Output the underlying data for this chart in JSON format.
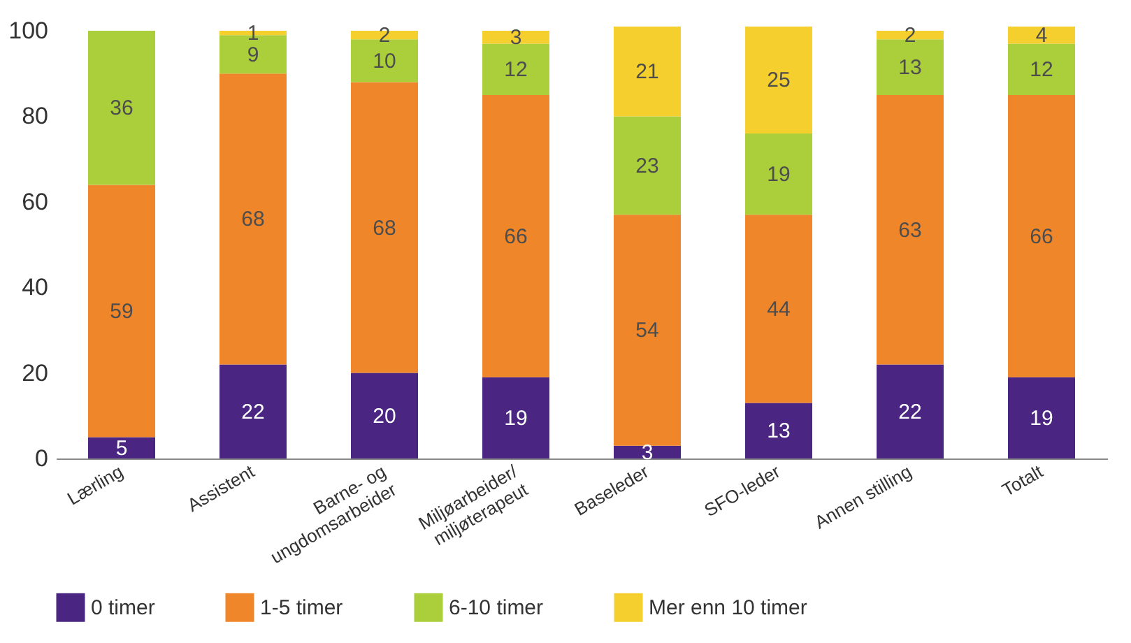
{
  "chart_data": {
    "type": "bar",
    "stacked": true,
    "categories": [
      "Lærling",
      "Assistent",
      "Barne- og\nungdomsarbeider",
      "Miljøarbeider/\nmiljøterapeut",
      "Baseleder",
      "SFO-leder",
      "Annen stilling",
      "Totalt"
    ],
    "series": [
      {
        "name": "0 timer",
        "color": "#4b2582",
        "values": [
          5,
          22,
          20,
          19,
          3,
          13,
          22,
          19
        ]
      },
      {
        "name": "1-5 timer",
        "color": "#f0862a",
        "values": [
          59,
          68,
          68,
          66,
          54,
          44,
          63,
          66
        ]
      },
      {
        "name": "6-10 timer",
        "color": "#abcf3b",
        "values": [
          36,
          9,
          10,
          12,
          23,
          19,
          13,
          12
        ]
      },
      {
        "name": "Mer enn 10 timer",
        "color": "#f5cf2d",
        "values": [
          null,
          1,
          2,
          3,
          21,
          25,
          2,
          4
        ]
      }
    ],
    "ylim": [
      0,
      101
    ],
    "yticks": [
      0,
      20,
      40,
      60,
      80,
      100
    ],
    "grid": false,
    "legend": "bottom",
    "data_labels": true
  }
}
